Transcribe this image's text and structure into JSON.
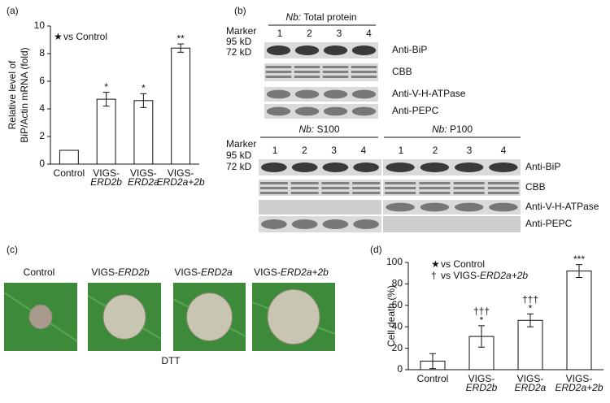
{
  "chart_data": [
    {
      "type": "bar",
      "panel": "(a)",
      "y_label": [
        "Relative level of",
        "BiP/Actin mRNA (fold)"
      ],
      "categories": [
        [
          "Control"
        ],
        [
          "VIGS-",
          "ERD2b"
        ],
        [
          "VIGS-",
          "ERD2a"
        ],
        [
          "VIGS-",
          "ERD2a+2b"
        ]
      ],
      "values": [
        1.0,
        4.7,
        4.6,
        8.4
      ],
      "errors": [
        null,
        0.5,
        0.5,
        0.3
      ],
      "significance": [
        null,
        [
          "*"
        ],
        [
          "*"
        ],
        [
          "**"
        ]
      ],
      "legend": [
        {
          "symbol": "★",
          "text": [
            "vs Control"
          ]
        }
      ],
      "color": "#ffffff",
      "ylim": [
        0,
        10
      ],
      "yticks": [
        0,
        2,
        4,
        6,
        8,
        10
      ]
    },
    {
      "type": "bar",
      "panel": "(d)",
      "y_label": [
        "Cell death (%)"
      ],
      "categories": [
        [
          "Control"
        ],
        [
          "VIGS-",
          "ERD2b"
        ],
        [
          "VIGS-",
          "ERD2a"
        ],
        [
          "VIGS-",
          "ERD2a+2b"
        ]
      ],
      "values": [
        8,
        31,
        46,
        92
      ],
      "errors": [
        7,
        10,
        6,
        6
      ],
      "significance": [
        null,
        [
          "†††",
          "*"
        ],
        [
          "†††",
          "*"
        ],
        [
          "***"
        ]
      ],
      "legend": [
        {
          "symbol": "★",
          "text": [
            "vs Control"
          ]
        },
        {
          "symbol": "†",
          "text": [
            "vs VIGS-",
            "ERD2a+2b"
          ]
        }
      ],
      "color": "#ffffff",
      "ylim": [
        0,
        100
      ],
      "yticks": [
        0,
        20,
        40,
        60,
        80,
        100
      ]
    }
  ],
  "blots": {
    "panel": "(b)",
    "top": {
      "title": [
        "Nb:",
        " Total protein"
      ],
      "marker": "Marker",
      "kd": [
        "95 kD",
        "72 kD"
      ],
      "lanes": [
        "1",
        "2",
        "3",
        "4"
      ],
      "rows": [
        "Anti-BiP",
        "CBB",
        "Anti-V-H-ATPase",
        "Anti-PEPC"
      ]
    },
    "bottom": {
      "marker": "Marker",
      "kd": [
        "95 kD",
        "72 kD"
      ],
      "groups": [
        {
          "title": [
            "Nb:",
            " S100"
          ],
          "lanes": [
            "1",
            "2",
            "3",
            "4"
          ]
        },
        {
          "title": [
            "Nb:",
            " P100"
          ],
          "lanes": [
            "1",
            "2",
            "3",
            "4"
          ]
        }
      ],
      "rows": [
        "Anti-BiP",
        "CBB",
        "Anti-V-H-ATPase",
        "Anti-PEPC"
      ]
    }
  },
  "leaves": {
    "panel": "(c)",
    "labels": [
      [
        "Control"
      ],
      [
        "VIGS-",
        "ERD2b"
      ],
      [
        "VIGS-",
        "ERD2a"
      ],
      [
        "VIGS-",
        "ERD2a+2b"
      ]
    ],
    "treatment": "DTT"
  }
}
